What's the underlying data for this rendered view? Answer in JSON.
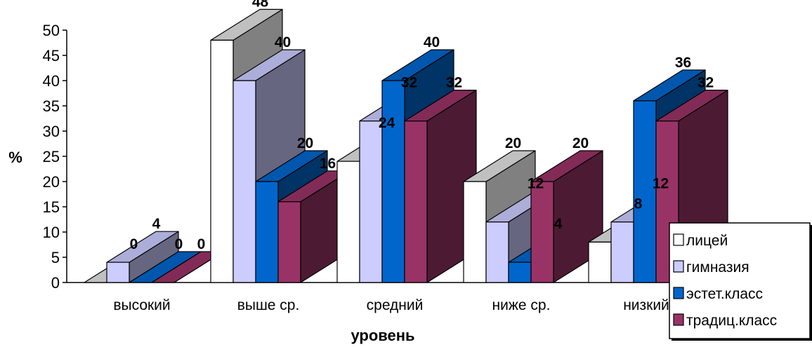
{
  "chart_data": {
    "type": "bar",
    "categories": [
      "высокий",
      "выше ср.",
      "средний",
      "ниже ср.",
      "низкий"
    ],
    "series": [
      {
        "name": "лицей",
        "values": [
          0,
          48,
          24,
          20,
          8
        ],
        "color": "#ffffff"
      },
      {
        "name": "гимназия",
        "values": [
          4,
          40,
          32,
          12,
          12
        ],
        "color": "#ccccff"
      },
      {
        "name": "эстет.класс",
        "values": [
          0,
          20,
          40,
          4,
          36
        ],
        "color": "#0066cc"
      },
      {
        "name": "традиц.класс",
        "values": [
          0,
          16,
          32,
          20,
          32
        ],
        "color": "#993366"
      }
    ],
    "xlabel": "уровень",
    "ylabel": "%",
    "ylim": [
      0,
      50
    ],
    "yticks": [
      "0",
      "5",
      "10",
      "15",
      "20",
      "25",
      "30",
      "35",
      "40",
      "45",
      "50"
    ],
    "grid": false,
    "legend": "right",
    "style": "3d-clustered-column"
  }
}
